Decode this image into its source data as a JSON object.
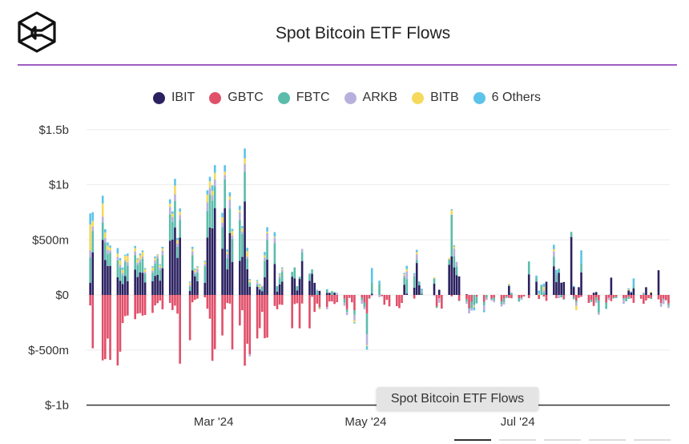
{
  "header": {
    "title": "Spot Bitcoin ETF Flows",
    "accent_color": "#a05cc4"
  },
  "tooltip": {
    "text": "Spot Bitcoin ETF Flows"
  },
  "chart_data": {
    "type": "bar",
    "stacked": true,
    "title": "Spot Bitcoin ETF Flows",
    "xlabel": "",
    "ylabel": "",
    "units": "USD millions",
    "ylim": [
      -1000,
      1500
    ],
    "y_ticks": [
      {
        "value": 1500,
        "label": "$1.5b"
      },
      {
        "value": 1000,
        "label": "$1b"
      },
      {
        "value": 500,
        "label": "$500m"
      },
      {
        "value": 0,
        "label": "$0"
      },
      {
        "value": -500,
        "label": "$-500m"
      },
      {
        "value": -1000,
        "label": "$-1b"
      }
    ],
    "x_ticks": [
      {
        "date": "2024-03-01",
        "label": "Mar '24"
      },
      {
        "date": "2024-05-01",
        "label": "May '24"
      },
      {
        "date": "2024-07-01",
        "label": "Jul '24"
      }
    ],
    "x_range": [
      "2024-01-10",
      "2024-08-31"
    ],
    "trading_days": {
      "start": "2024-01-11",
      "end": "2024-08-30",
      "holidays": [
        "2024-01-15",
        "2024-02-19",
        "2024-03-29",
        "2024-05-27",
        "2024-06-19",
        "2024-07-04"
      ]
    },
    "grid": true,
    "legend_position": "top-center",
    "series": [
      {
        "name": "IBIT",
        "color": "#2b2160",
        "values": [
          111,
          386,
          500,
          318,
          262,
          264,
          160,
          129,
          99,
          171,
          125,
          230,
          163,
          205,
          201,
          113,
          125,
          173,
          183,
          130,
          242,
          493,
          503,
          613,
          337,
          520,
          36,
          222,
          169,
          125,
          111,
          520,
          612,
          604,
          788,
          420,
          788,
          232,
          562,
          300,
          309,
          345,
          849,
          233,
          75,
          75,
          49,
          34,
          160,
          320,
          280,
          30,
          95,
          120,
          166,
          150,
          40,
          145,
          308,
          128,
          192,
          110,
          0,
          37,
          18,
          19,
          0,
          20,
          0,
          0,
          0,
          0,
          0,
          0,
          0,
          0,
          0,
          0,
          12,
          0,
          0,
          0,
          0,
          0,
          0,
          0,
          0,
          93,
          13,
          66,
          290,
          88,
          4,
          0,
          102,
          0,
          47,
          0,
          274,
          350,
          250,
          180,
          168,
          6,
          0,
          0,
          0,
          0,
          0,
          0,
          0,
          0,
          0,
          0,
          0,
          82,
          0,
          0,
          0,
          0,
          187,
          121,
          0,
          0,
          0,
          120,
          260,
          117,
          200,
          111,
          117,
          526,
          72,
          0,
          70,
          205,
          0,
          0,
          20,
          26,
          0,
          0,
          0,
          157,
          0,
          0,
          0,
          0,
          40,
          22,
          60,
          0,
          0,
          70,
          0,
          20,
          224,
          0,
          0,
          0,
          0
        ]
      },
      {
        "name": "GBTC",
        "color": "#e0506a",
        "values": [
          -95,
          -484,
          -594,
          -582,
          -396,
          -590,
          -640,
          -515,
          -255,
          -192,
          -187,
          -220,
          -170,
          -165,
          -188,
          -182,
          -163,
          -95,
          -75,
          -51,
          -130,
          -73,
          -137,
          -97,
          -170,
          -624,
          -411,
          -67,
          -45,
          -34,
          -22,
          -125,
          -216,
          -598,
          -492,
          -368,
          -130,
          -73,
          -79,
          -494,
          -277,
          -139,
          -642,
          -443,
          -538,
          -395,
          -302,
          -154,
          -392,
          -387,
          -100,
          -130,
          -87,
          -90,
          -302,
          -81,
          -75,
          -303,
          -78,
          -303,
          -17,
          -154,
          -79,
          -111,
          -110,
          -59,
          -59,
          -82,
          -66,
          -34,
          -130,
          -25,
          -67,
          -139,
          -25,
          -70,
          -167,
          -30,
          0,
          0,
          -12,
          -89,
          -44,
          -104,
          -102,
          -120,
          -73,
          0,
          0,
          -33,
          0,
          0,
          0,
          0,
          0,
          -105,
          -31,
          -124,
          0,
          -13,
          0,
          0,
          -52,
          -39,
          -120,
          -62,
          0,
          -17,
          -62,
          -1,
          -32,
          -25,
          -60,
          -32,
          -12,
          -27,
          -30,
          -29,
          -25,
          -14,
          -28,
          0,
          -37,
          0,
          -14,
          -54,
          0,
          -30,
          0,
          0,
          -37,
          0,
          -18,
          -53,
          -26,
          -17,
          -73,
          -44,
          -100,
          -22,
          -50,
          -69,
          -25,
          -56,
          -22,
          -17,
          -30,
          -28,
          -16,
          -31,
          -72,
          -35,
          -80,
          -50,
          -30,
          -28,
          -40,
          -74,
          -35,
          -48,
          -79
        ]
      },
      {
        "name": "FBTC",
        "color": "#5bbcab",
        "values": [
          227,
          195,
          160,
          158,
          110,
          120,
          155,
          120,
          80,
          130,
          140,
          130,
          110,
          90,
          128,
          80,
          75,
          110,
          150,
          95,
          120,
          240,
          160,
          240,
          100,
          160,
          40,
          140,
          20,
          80,
          150,
          240,
          300,
          250,
          200,
          195,
          260,
          100,
          220,
          210,
          370,
          210,
          270,
          95,
          40,
          20,
          0,
          40,
          150,
          180,
          190,
          50,
          60,
          90,
          44,
          100,
          40,
          20,
          80,
          60,
          40,
          0,
          38,
          -10,
          34,
          0,
          35,
          5,
          0,
          -35,
          -23,
          -3,
          0,
          -40,
          -25,
          -40,
          -191,
          -5,
          102,
          99,
          2,
          0,
          0,
          0,
          0,
          0,
          0,
          67,
          131,
          102,
          29,
          34,
          23,
          0,
          48,
          -13,
          0,
          0,
          48,
          378,
          100,
          80,
          -4,
          -21,
          -8,
          -60,
          -90,
          -60,
          -35,
          -25,
          -10,
          -22,
          -25,
          -35,
          -15,
          10,
          20,
          -32,
          -5,
          0,
          117,
          35,
          0,
          92,
          23,
          0,
          85,
          70,
          38,
          -23,
          -6,
          46,
          -22,
          -15,
          0,
          80,
          0,
          -20,
          0,
          -30,
          -110,
          -58,
          3,
          0,
          -10,
          -12,
          -11,
          -30,
          -20,
          0,
          20,
          0,
          12,
          0,
          0,
          -9,
          0,
          -4,
          -8,
          0,
          -20
        ]
      },
      {
        "name": "ARKB",
        "color": "#b8b0dc",
        "values": [
          65,
          40,
          50,
          40,
          35,
          20,
          30,
          25,
          20,
          15,
          30,
          35,
          20,
          25,
          20,
          15,
          20,
          30,
          20,
          25,
          40,
          65,
          45,
          60,
          30,
          45,
          15,
          35,
          20,
          30,
          20,
          80,
          60,
          50,
          60,
          40,
          40,
          40,
          80,
          30,
          70,
          20,
          70,
          20,
          -20,
          20,
          20,
          10,
          30,
          60,
          50,
          0,
          20,
          20,
          0,
          -5,
          0,
          0,
          30,
          10,
          0,
          0,
          10,
          0,
          -20,
          0,
          0,
          0,
          20,
          -30,
          -30,
          0,
          0,
          -50,
          -30,
          -20,
          -98,
          0,
          -10,
          -20,
          0,
          0,
          0,
          0,
          0,
          0,
          0,
          20,
          70,
          20,
          50,
          0,
          10,
          0,
          -10,
          0,
          -40,
          0,
          0,
          0,
          70,
          40,
          0,
          -20,
          -40,
          -20,
          -10,
          0,
          -40,
          -20,
          -10,
          -20,
          -20,
          -20,
          0,
          0,
          0,
          0,
          -15,
          0,
          0,
          0,
          0,
          0,
          20,
          0,
          50,
          0,
          -30,
          0,
          0,
          0,
          0,
          -30,
          0,
          0,
          0,
          0,
          0,
          -20,
          -20,
          0,
          -20,
          0,
          0,
          0,
          -40,
          0,
          0,
          0,
          0,
          0,
          10,
          0,
          0,
          0,
          0,
          -30,
          -40,
          0,
          -20
        ]
      },
      {
        "name": "BITB",
        "color": "#f4d95c",
        "values": [
          237,
          50,
          120,
          50,
          40,
          25,
          30,
          40,
          30,
          40,
          60,
          30,
          30,
          40,
          40,
          25,
          30,
          20,
          10,
          20,
          20,
          30,
          30,
          80,
          30,
          30,
          20,
          20,
          20,
          15,
          20,
          70,
          60,
          40,
          60,
          50,
          30,
          20,
          30,
          40,
          20,
          30,
          50,
          50,
          20,
          10,
          20,
          0,
          20,
          15,
          10,
          0,
          10,
          10,
          0,
          0,
          0,
          0,
          0,
          0,
          0,
          0,
          0,
          -10,
          0,
          0,
          0,
          0,
          0,
          0,
          0,
          0,
          0,
          -20,
          0,
          0,
          -10,
          0,
          0,
          0,
          0,
          0,
          0,
          0,
          0,
          0,
          0,
          10,
          20,
          0,
          20,
          0,
          0,
          0,
          10,
          0,
          0,
          0,
          14,
          40,
          20,
          0,
          0,
          0,
          0,
          0,
          -10,
          0,
          0,
          0,
          0,
          0,
          0,
          0,
          0,
          10,
          0,
          0,
          0,
          0,
          0,
          0,
          10,
          0,
          30,
          0,
          20,
          0,
          0,
          0,
          0,
          0,
          0,
          -40,
          0,
          0,
          0,
          0,
          0,
          0,
          0,
          0,
          0,
          0,
          0,
          0,
          0,
          0,
          10,
          0,
          0,
          0,
          0,
          0,
          0,
          10,
          0,
          0,
          0,
          0,
          0
        ]
      },
      {
        "name": "6 Others",
        "color": "#5cc3ea",
        "values": [
          100,
          80,
          70,
          30,
          30,
          20,
          50,
          20,
          20,
          10,
          20,
          20,
          10,
          15,
          15,
          10,
          10,
          15,
          5,
          10,
          15,
          40,
          20,
          60,
          20,
          30,
          10,
          20,
          10,
          10,
          10,
          40,
          40,
          50,
          70,
          40,
          60,
          20,
          40,
          20,
          40,
          20,
          90,
          30,
          10,
          10,
          10,
          0,
          30,
          40,
          40,
          0,
          10,
          10,
          0,
          0,
          0,
          0,
          0,
          0,
          0,
          0,
          0,
          0,
          0,
          0,
          0,
          0,
          0,
          0,
          0,
          0,
          0,
          -10,
          0,
          0,
          -30,
          0,
          130,
          30,
          0,
          0,
          0,
          0,
          0,
          0,
          0,
          10,
          30,
          10,
          20,
          0,
          20,
          0,
          0,
          0,
          0,
          0,
          0,
          10,
          10,
          0,
          0,
          0,
          0,
          0,
          -30,
          0,
          -20,
          0,
          0,
          0,
          0,
          0,
          0,
          0,
          0,
          0,
          0,
          0,
          0,
          20,
          30,
          0,
          30,
          0,
          40,
          40,
          0,
          0,
          0,
          0,
          10,
          0,
          0,
          120,
          0,
          0,
          0,
          0,
          0,
          0,
          0,
          0,
          0,
          0,
          0,
          0,
          10,
          10,
          70,
          0,
          0,
          0,
          0,
          0,
          0,
          0,
          0,
          0,
          0
        ]
      }
    ]
  }
}
